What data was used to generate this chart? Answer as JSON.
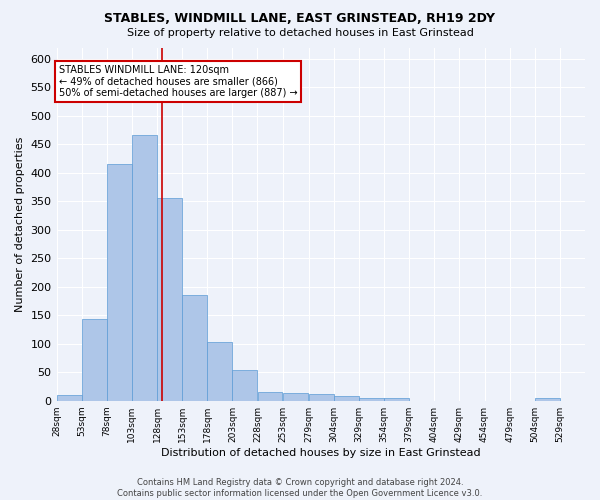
{
  "title": "STABLES, WINDMILL LANE, EAST GRINSTEAD, RH19 2DY",
  "subtitle": "Size of property relative to detached houses in East Grinstead",
  "xlabel": "Distribution of detached houses by size in East Grinstead",
  "ylabel": "Number of detached properties",
  "footer_line1": "Contains HM Land Registry data © Crown copyright and database right 2024.",
  "footer_line2": "Contains public sector information licensed under the Open Government Licence v3.0.",
  "bar_color": "#aec6e8",
  "bar_edge_color": "#5b9bd5",
  "background_color": "#eef2fa",
  "grid_color": "#ffffff",
  "annotation_line1": "STABLES WINDMILL LANE: 120sqm",
  "annotation_line2": "← 49% of detached houses are smaller (866)",
  "annotation_line3": "50% of semi-detached houses are larger (887) →",
  "vline_x": 120,
  "vline_color": "#cc0000",
  "annotation_box_color": "#ffffff",
  "annotation_box_edge": "#cc0000",
  "categories": [
    "28sqm",
    "53sqm",
    "78sqm",
    "103sqm",
    "128sqm",
    "153sqm",
    "178sqm",
    "203sqm",
    "228sqm",
    "253sqm",
    "279sqm",
    "304sqm",
    "329sqm",
    "354sqm",
    "379sqm",
    "404sqm",
    "429sqm",
    "454sqm",
    "479sqm",
    "504sqm",
    "529sqm"
  ],
  "bin_edges": [
    15.5,
    40.5,
    65.5,
    90.5,
    115.5,
    140.5,
    165.5,
    190.5,
    215.5,
    240.5,
    266.5,
    291.5,
    316.5,
    341.5,
    366.5,
    391.5,
    416.5,
    441.5,
    466.5,
    491.5,
    516.5,
    541.5
  ],
  "values": [
    10,
    143,
    416,
    467,
    355,
    186,
    103,
    54,
    16,
    14,
    11,
    8,
    5,
    5,
    0,
    0,
    0,
    0,
    0,
    5,
    0
  ],
  "ylim": [
    0,
    620
  ],
  "xlim": [
    15.5,
    541.5
  ],
  "yticks": [
    0,
    50,
    100,
    150,
    200,
    250,
    300,
    350,
    400,
    450,
    500,
    550,
    600
  ]
}
